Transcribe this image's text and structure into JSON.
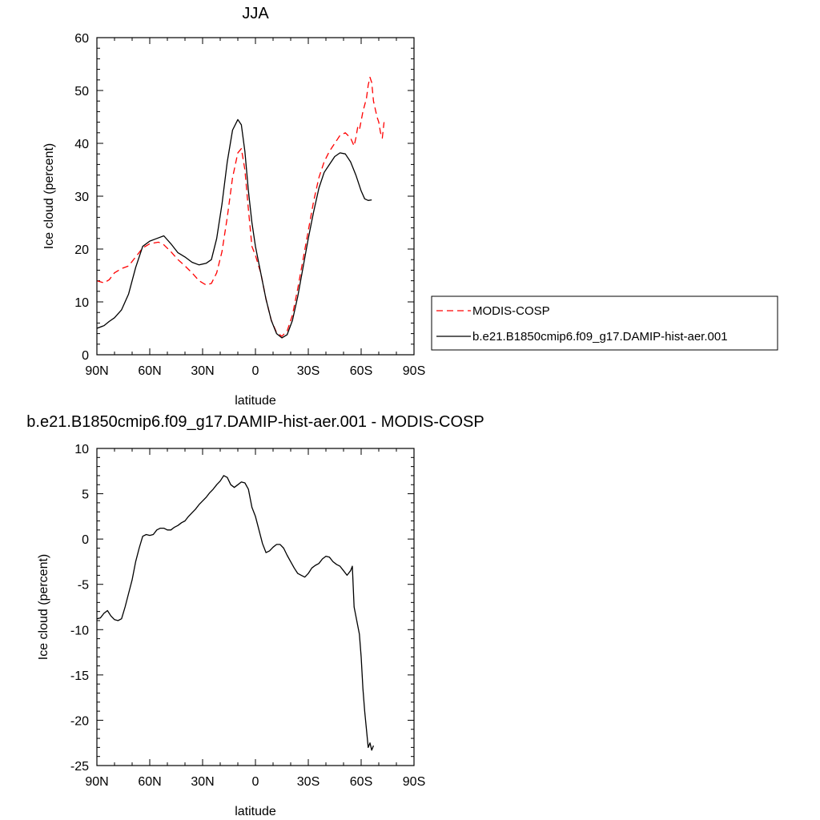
{
  "chart_data": [
    {
      "type": "line",
      "title": "JJA",
      "xlabel": "latitude",
      "ylabel": "Ice cloud (percent)",
      "xlim": [
        90,
        -90
      ],
      "ylim": [
        0,
        60
      ],
      "xticks": [
        90,
        60,
        30,
        0,
        -30,
        -60,
        -90
      ],
      "xtick_labels": [
        "90N",
        "60N",
        "30N",
        "0",
        "30S",
        "60S",
        "90S"
      ],
      "yticks": [
        0,
        10,
        20,
        30,
        40,
        50,
        60
      ],
      "ytick_labels": [
        "0",
        "10",
        "20",
        "30",
        "40",
        "50",
        "60"
      ],
      "grid": false,
      "legend_position": "right",
      "series": [
        {
          "name": "MODIS-COSP",
          "color": "#ff0000",
          "style": "dashed",
          "x": [
            90,
            86,
            83,
            80,
            76,
            72,
            68,
            64,
            60,
            55,
            52,
            48,
            44,
            40,
            36,
            32,
            28,
            25,
            22,
            19,
            16,
            13,
            10,
            8,
            6,
            4,
            2,
            0,
            -3,
            -6,
            -9,
            -12,
            -15,
            -18,
            -21,
            -24,
            -27,
            -30,
            -33,
            -36,
            -39,
            -42,
            -45,
            -48,
            -51,
            -54,
            -56,
            -57,
            -58,
            -59,
            -61,
            -63,
            -64,
            -65,
            -66,
            -67,
            -69,
            -70,
            -71,
            -72,
            -73
          ],
          "y": [
            14,
            13.6,
            14.2,
            15.5,
            16.3,
            16.8,
            18.5,
            20.2,
            21.0,
            21.3,
            20.8,
            19.5,
            18.0,
            16.8,
            15.5,
            14.0,
            13.2,
            13.5,
            15.5,
            19.5,
            26.0,
            33.5,
            38.2,
            39.0,
            35.0,
            27.5,
            20.5,
            18.8,
            15.5,
            10.5,
            6.5,
            4.2,
            3.5,
            4.5,
            7.5,
            12.5,
            18.0,
            23.5,
            29.0,
            33.5,
            36.5,
            38.5,
            40.0,
            41.5,
            42.0,
            41.0,
            39.5,
            41.0,
            43.0,
            42.5,
            46.0,
            48.5,
            51.0,
            52.5,
            51.5,
            48.0,
            45.0,
            44.0,
            42.0,
            41.0,
            44.0
          ]
        },
        {
          "name": "b.e21.B1850cmip6.f09_g17.DAMIP-hist-aer.001",
          "color": "#000000",
          "style": "solid",
          "x": [
            90,
            86,
            83,
            80,
            76,
            72,
            68,
            64,
            60,
            56,
            52,
            48,
            44,
            40,
            36,
            32,
            28,
            25,
            22,
            19,
            16,
            13,
            10,
            8,
            6,
            4,
            2,
            0,
            -3,
            -6,
            -9,
            -12,
            -15,
            -18,
            -21,
            -24,
            -27,
            -30,
            -33,
            -36,
            -39,
            -42,
            -45,
            -48,
            -51,
            -54,
            -57,
            -60,
            -62,
            -64,
            -66
          ],
          "y": [
            5.0,
            5.5,
            6.3,
            7.0,
            8.5,
            11.5,
            16.5,
            20.5,
            21.5,
            22.0,
            22.5,
            21.0,
            19.3,
            18.5,
            17.5,
            17.0,
            17.3,
            18.0,
            22.0,
            28.5,
            36.5,
            42.5,
            44.5,
            43.5,
            38.5,
            31.0,
            25.0,
            20.5,
            15.5,
            10.5,
            6.5,
            4.0,
            3.2,
            3.8,
            6.5,
            11.0,
            16.5,
            22.0,
            27.0,
            31.5,
            34.5,
            36.0,
            37.5,
            38.2,
            38.0,
            36.5,
            34.0,
            31.0,
            29.5,
            29.2,
            29.3
          ]
        }
      ]
    },
    {
      "type": "line",
      "title": "b.e21.B1850cmip6.f09_g17.DAMIP-hist-aer.001 - MODIS-COSP",
      "xlabel": "latitude",
      "ylabel": "Ice cloud (percent)",
      "xlim": [
        90,
        -90
      ],
      "ylim": [
        -25,
        10
      ],
      "xticks": [
        90,
        60,
        30,
        0,
        -30,
        -60,
        -90
      ],
      "xtick_labels": [
        "90N",
        "60N",
        "30N",
        "0",
        "30S",
        "60S",
        "90S"
      ],
      "yticks": [
        -25,
        -20,
        -15,
        -10,
        -5,
        0,
        5,
        10
      ],
      "ytick_labels": [
        "-25",
        "-20",
        "-15",
        "-10",
        "-5",
        "0",
        "5",
        "10"
      ],
      "grid": false,
      "series": [
        {
          "color": "#000000",
          "style": "solid",
          "x": [
            90,
            88,
            86,
            84,
            82,
            80,
            78,
            76,
            74,
            72,
            70,
            68,
            66,
            64,
            62,
            60,
            58,
            56,
            54,
            52,
            50,
            48,
            46,
            44,
            42,
            40,
            38,
            36,
            34,
            32,
            30,
            28,
            26,
            24,
            22,
            20,
            18,
            16,
            14,
            12,
            10,
            8,
            6,
            4,
            2,
            0,
            -2,
            -4,
            -6,
            -8,
            -10,
            -12,
            -14,
            -16,
            -18,
            -20,
            -22,
            -24,
            -26,
            -28,
            -30,
            -32,
            -34,
            -36,
            -38,
            -40,
            -42,
            -44,
            -46,
            -48,
            -50,
            -52,
            -54,
            -55,
            -56,
            -57,
            -58,
            -59,
            -60,
            -61,
            -62,
            -63,
            -64,
            -65,
            -66,
            -67
          ],
          "y": [
            -8.8,
            -8.7,
            -8.2,
            -7.9,
            -8.5,
            -8.9,
            -9.0,
            -8.8,
            -7.5,
            -6.0,
            -4.5,
            -2.5,
            -1.0,
            0.3,
            0.5,
            0.4,
            0.5,
            1.0,
            1.2,
            1.2,
            1.0,
            1.0,
            1.3,
            1.5,
            1.8,
            2.0,
            2.5,
            2.9,
            3.3,
            3.8,
            4.2,
            4.6,
            5.1,
            5.5,
            6.0,
            6.4,
            7.0,
            6.8,
            6.0,
            5.7,
            6.0,
            6.3,
            6.2,
            5.5,
            3.5,
            2.5,
            1.0,
            -0.5,
            -1.5,
            -1.3,
            -0.9,
            -0.6,
            -0.6,
            -1.0,
            -1.8,
            -2.5,
            -3.2,
            -3.8,
            -4.0,
            -4.2,
            -3.8,
            -3.2,
            -2.9,
            -2.7,
            -2.2,
            -1.9,
            -2.0,
            -2.5,
            -2.8,
            -3.0,
            -3.5,
            -4.0,
            -3.5,
            -3.0,
            -7.5,
            -8.5,
            -9.5,
            -10.5,
            -13.0,
            -16.5,
            -19.0,
            -21.0,
            -23.0,
            -22.5,
            -23.3,
            -22.8
          ]
        }
      ]
    }
  ]
}
